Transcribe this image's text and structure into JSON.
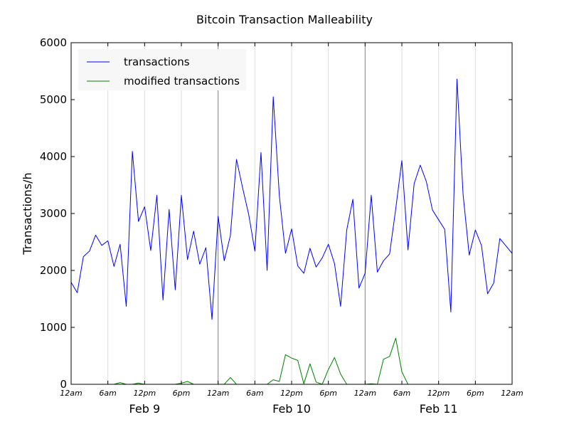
{
  "chart_data": {
    "type": "line",
    "title": "Bitcoin Transaction Malleability",
    "xlabel": "",
    "ylabel": "Transactions/h",
    "ylim": [
      0,
      6000
    ],
    "xlim_hours": [
      0,
      72
    ],
    "y_ticks": [
      0,
      1000,
      2000,
      3000,
      4000,
      5000,
      6000
    ],
    "hour_ticks": [
      0,
      6,
      12,
      18,
      24,
      30,
      36,
      42,
      48,
      54,
      60,
      66,
      72
    ],
    "hour_tick_labels": [
      "12am",
      "6am",
      "12pm",
      "6pm",
      "12am",
      "6am",
      "12pm",
      "6pm",
      "12am",
      "6am",
      "12pm",
      "6pm",
      "12am"
    ],
    "day_labels": [
      "Feb 9",
      "Feb 10",
      "Feb 11"
    ],
    "day_label_hours": [
      12,
      36,
      60
    ],
    "day_boundaries_hours": [
      24,
      48
    ],
    "legend_position": "top-left",
    "series": [
      {
        "name": "transactions",
        "color": "#0000ff",
        "x": [
          0,
          1,
          2,
          3,
          4,
          5,
          6,
          7,
          8,
          9,
          10,
          11,
          12,
          13,
          14,
          15,
          16,
          17,
          18,
          19,
          20,
          21,
          22,
          23,
          24,
          25,
          26,
          27,
          28,
          29,
          30,
          31,
          32,
          33,
          34,
          35,
          36,
          37,
          38,
          39,
          40,
          41,
          42,
          43,
          44,
          45,
          46,
          47,
          48,
          49,
          50,
          51,
          52,
          53,
          54,
          55,
          56,
          57,
          58,
          59,
          60,
          61,
          62,
          63,
          64,
          65,
          66,
          67,
          68,
          69,
          70,
          71,
          72
        ],
        "values": [
          1790,
          1610,
          2240,
          2340,
          2620,
          2440,
          2520,
          2070,
          2460,
          1370,
          4090,
          2860,
          3120,
          2350,
          3320,
          1480,
          3070,
          1660,
          3320,
          2190,
          2690,
          2110,
          2400,
          1140,
          2950,
          2170,
          2610,
          3950,
          3450,
          2980,
          2340,
          4070,
          2000,
          5050,
          3310,
          2300,
          2730,
          2080,
          1950,
          2390,
          2060,
          2220,
          2460,
          2120,
          1370,
          2710,
          3250,
          1690,
          1950,
          3320,
          1970,
          2170,
          2290,
          3080,
          3930,
          2360,
          3520,
          3850,
          3560,
          3060,
          2890,
          2720,
          1270,
          5360,
          3330,
          2270,
          2710,
          2440,
          1590,
          1780,
          2560,
          2430,
          2300
        ]
      },
      {
        "name": "modified transactions",
        "color": "#008000",
        "x": [
          0,
          1,
          2,
          3,
          4,
          5,
          6,
          7,
          8,
          9,
          10,
          11,
          12,
          13,
          14,
          15,
          16,
          17,
          18,
          19,
          20,
          21,
          22,
          23,
          24,
          25,
          26,
          27,
          28,
          29,
          30,
          31,
          32,
          33,
          34,
          35,
          36,
          37,
          38,
          39,
          40,
          41,
          42,
          43,
          44,
          45,
          46,
          47,
          48,
          49,
          50,
          51,
          52,
          53,
          54,
          55,
          56,
          57,
          58,
          59,
          60,
          61,
          62,
          63,
          64,
          65,
          66,
          67,
          68,
          69,
          70,
          71,
          72
        ],
        "values": [
          0,
          0,
          0,
          0,
          0,
          0,
          0,
          0,
          30,
          0,
          0,
          20,
          0,
          0,
          0,
          0,
          0,
          0,
          20,
          50,
          0,
          0,
          0,
          0,
          0,
          0,
          120,
          0,
          0,
          0,
          0,
          0,
          0,
          80,
          50,
          520,
          460,
          420,
          10,
          360,
          40,
          0,
          260,
          470,
          180,
          0,
          0,
          0,
          0,
          10,
          0,
          440,
          490,
          810,
          220,
          0,
          0,
          0,
          0,
          0,
          0,
          0,
          0,
          0,
          0,
          0,
          0,
          0,
          0,
          0,
          0,
          0,
          0
        ]
      }
    ]
  }
}
